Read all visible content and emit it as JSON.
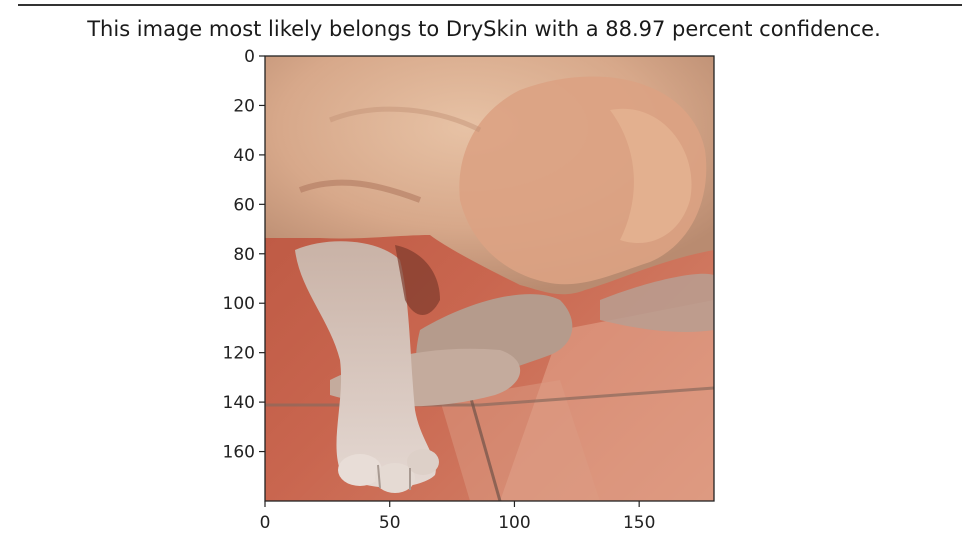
{
  "chart_data": {
    "type": "image",
    "title": "This image most likely belongs to DrySkin with a 88.97 percent confidence.",
    "xlabel": "",
    "ylabel": "",
    "xlim": [
      0,
      180
    ],
    "ylim": [
      180,
      0
    ],
    "x_ticks": [
      0,
      50,
      100,
      150
    ],
    "y_ticks": [
      0,
      20,
      40,
      60,
      80,
      100,
      120,
      140,
      160
    ],
    "grid": false,
    "image_subject": "close-up photo of a dog's paws and legs with dry, flaky, reddish fur lying on a red tiled floor"
  }
}
